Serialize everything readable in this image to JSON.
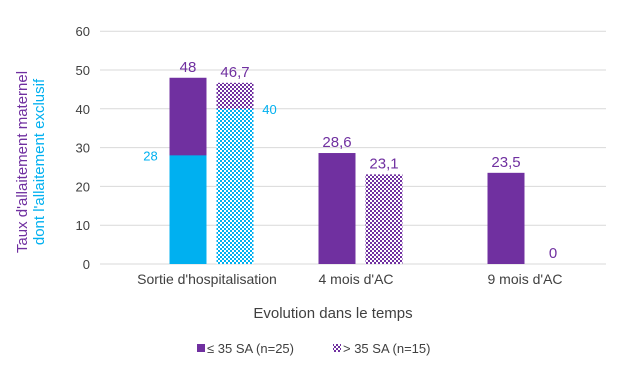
{
  "chart_data": {
    "type": "bar",
    "categories": [
      "Sortie d'hospitalisation",
      "4 mois d'AC",
      "9 mois d'AC"
    ],
    "series": [
      {
        "name": "≤ 35 SA (n=25)",
        "values": [
          48,
          28.6,
          23.5
        ],
        "labels": [
          "48",
          "28,6",
          "23,5"
        ],
        "pattern": "solid"
      },
      {
        "name": "> 35 SA (n=15)",
        "values": [
          46.7,
          23.1,
          0
        ],
        "labels": [
          "46,7",
          "23,1",
          "0"
        ],
        "pattern": "dotted"
      }
    ],
    "exclusive_series": {
      "values": [
        28,
        40
      ],
      "labels": [
        "28",
        "40"
      ]
    },
    "ylabel_line1": "Taux d'allaitement maternel",
    "ylabel_line2": "dont l'allaitement exclusif",
    "xlabel": "Evolution dans le temps",
    "ylim": [
      0,
      60
    ],
    "yticks": [
      "0",
      "10",
      "20",
      "30",
      "40",
      "50",
      "60"
    ],
    "grid": true,
    "legend_position": "bottom",
    "colors": {
      "purple": "#7030a0",
      "cyan": "#00b0f0",
      "grid": "#d9d9d9",
      "text": "#404040"
    }
  }
}
